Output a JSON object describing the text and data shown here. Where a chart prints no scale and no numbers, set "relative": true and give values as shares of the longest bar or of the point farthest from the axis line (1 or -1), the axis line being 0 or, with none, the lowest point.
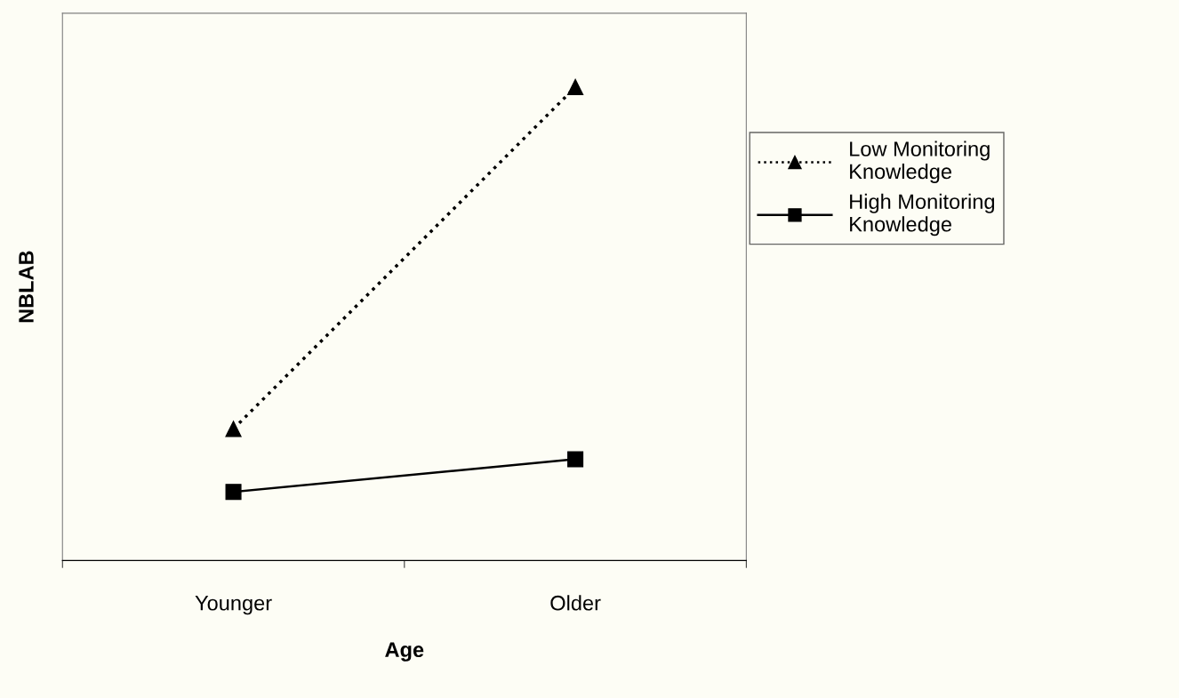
{
  "chart_data": {
    "type": "line",
    "xlabel": "Age",
    "ylabel": "NBLAB",
    "categories": [
      "Younger",
      "Older"
    ],
    "relative": true,
    "legend": "right",
    "grid": false,
    "series": [
      {
        "name": "Low Monitoring Knowledge",
        "color": "#000000",
        "marker": "triangle",
        "line_style": "dotted",
        "values": [
          0.278,
          1
        ]
      },
      {
        "name": "High Monitoring Knowledge",
        "color": "#000000",
        "marker": "square",
        "line_style": "solid",
        "values": [
          0.145,
          0.214
        ]
      }
    ]
  }
}
